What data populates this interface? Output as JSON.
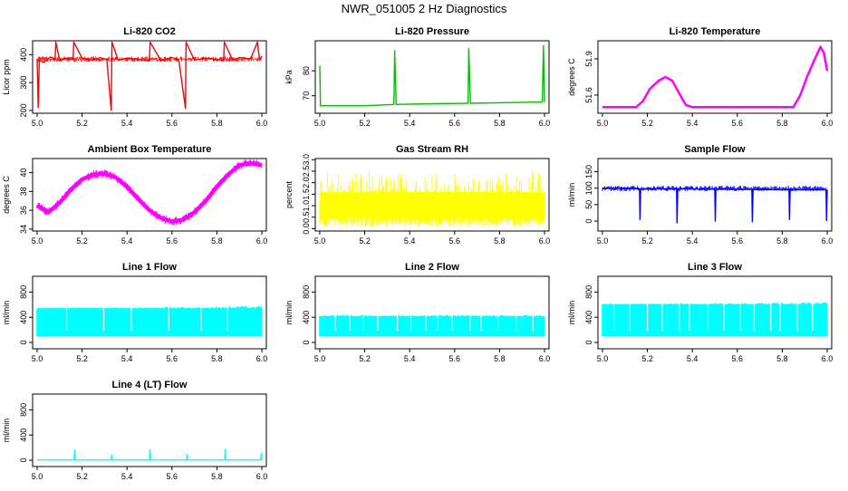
{
  "figure": {
    "title": "NWR_051005  2 Hz Diagnostics"
  },
  "chart_data": [
    {
      "type": "line",
      "title": "Li-820 CO2",
      "ylabel": "Licor ppm",
      "color": "#ff0000",
      "xlim": [
        4.98,
        6.02
      ],
      "ylim": [
        190,
        450
      ],
      "xticks": [
        5.0,
        5.2,
        5.4,
        5.6,
        5.8,
        6.0
      ],
      "xtick_labels": [
        "5.0",
        "5.2",
        "5.4",
        "5.6",
        "5.8",
        "6.0"
      ],
      "yticks": [
        200,
        300,
        400
      ],
      "ytick_labels": [
        "200",
        "300",
        "400"
      ],
      "series": [
        {
          "name": "CO2",
          "x": [
            5.0,
            5.005,
            5.01,
            5.03,
            5.06,
            5.08,
            5.083,
            5.1,
            5.13,
            5.16,
            5.163,
            5.2,
            5.25,
            5.28,
            5.31,
            5.33,
            5.333,
            5.36,
            5.4,
            5.45,
            5.5,
            5.503,
            5.55,
            5.6,
            5.63,
            5.66,
            5.663,
            5.7,
            5.75,
            5.8,
            5.83,
            5.833,
            5.87,
            5.9,
            5.95,
            5.98,
            5.99,
            6.0
          ],
          "values": [
            385,
            210,
            380,
            372,
            392,
            382,
            445,
            380,
            388,
            383,
            445,
            388,
            380,
            390,
            382,
            200,
            445,
            380,
            388,
            383,
            378,
            445,
            380,
            390,
            382,
            208,
            445,
            380,
            388,
            383,
            378,
            445,
            380,
            390,
            385,
            445,
            380,
            395
          ]
        }
      ]
    },
    {
      "type": "line",
      "title": "Li-820 Pressure",
      "ylabel": "kPa",
      "color": "#00c000",
      "xlim": [
        4.98,
        6.02
      ],
      "ylim": [
        63,
        92
      ],
      "xticks": [
        5.0,
        5.2,
        5.4,
        5.6,
        5.8,
        6.0
      ],
      "xtick_labels": [
        "5.0",
        "5.2",
        "5.4",
        "5.6",
        "5.8",
        "6.0"
      ],
      "yticks": [
        70,
        80
      ],
      "ytick_labels": [
        "70",
        "80"
      ],
      "series": [
        {
          "name": "Pressure",
          "x": [
            5.0,
            5.003,
            5.01,
            5.1,
            5.2,
            5.33,
            5.333,
            5.34,
            5.5,
            5.66,
            5.663,
            5.67,
            5.8,
            5.99,
            5.995,
            6.0
          ],
          "values": [
            82,
            66,
            66,
            66,
            66,
            66.5,
            88,
            66.5,
            66.8,
            67,
            89,
            67,
            67.2,
            67.5,
            90,
            67.5
          ]
        }
      ]
    },
    {
      "type": "line",
      "title": "Li-820 Temperature",
      "ylabel": "degrees C",
      "color": "#ff00ff",
      "xlim": [
        4.98,
        6.02
      ],
      "ylim": [
        51.45,
        52.05
      ],
      "xticks": [
        5.0,
        5.2,
        5.4,
        5.6,
        5.8,
        6.0
      ],
      "xtick_labels": [
        "5.0",
        "5.2",
        "5.4",
        "5.6",
        "5.8",
        "6.0"
      ],
      "yticks": [
        51.6,
        51.9
      ],
      "ytick_labels": [
        "51.6",
        "51.9"
      ],
      "series": [
        {
          "name": "Temperature",
          "x": [
            5.0,
            5.1,
            5.15,
            5.18,
            5.21,
            5.25,
            5.28,
            5.31,
            5.34,
            5.37,
            5.4,
            5.5,
            5.6,
            5.7,
            5.8,
            5.85,
            5.88,
            5.91,
            5.94,
            5.97,
            5.985,
            6.0
          ],
          "values": [
            51.5,
            51.5,
            51.5,
            51.55,
            51.65,
            51.72,
            51.75,
            51.72,
            51.62,
            51.52,
            51.5,
            51.5,
            51.5,
            51.5,
            51.5,
            51.5,
            51.6,
            51.75,
            51.88,
            52.0,
            51.95,
            51.8
          ]
        }
      ]
    },
    {
      "type": "line",
      "title": "Ambient Box Temperature",
      "ylabel": "degrees C",
      "color": "#ff00ff",
      "xlim": [
        4.98,
        6.02
      ],
      "ylim": [
        33.8,
        41.5
      ],
      "xticks": [
        5.0,
        5.2,
        5.4,
        5.6,
        5.8,
        6.0
      ],
      "xtick_labels": [
        "5.0",
        "5.2",
        "5.4",
        "5.6",
        "5.8",
        "6.0"
      ],
      "yticks": [
        34,
        36,
        38,
        40
      ],
      "ytick_labels": [
        "34",
        "36",
        "38",
        "40"
      ],
      "series": [
        {
          "name": "Ambient",
          "x": [
            5.0,
            5.05,
            5.1,
            5.15,
            5.2,
            5.25,
            5.3,
            5.35,
            5.4,
            5.45,
            5.5,
            5.55,
            5.6,
            5.65,
            5.7,
            5.75,
            5.8,
            5.85,
            5.9,
            5.95,
            6.0
          ],
          "values": [
            36.5,
            35.8,
            36.8,
            38.2,
            39.3,
            39.8,
            39.9,
            39.5,
            38.5,
            37.2,
            36.0,
            35.2,
            34.8,
            35.0,
            35.8,
            37.0,
            38.5,
            39.8,
            40.8,
            41.0,
            40.8
          ]
        }
      ]
    },
    {
      "type": "line",
      "title": "Gas Stream RH",
      "ylabel": "percent",
      "color": "#ffff00",
      "xlim": [
        4.98,
        6.02
      ],
      "ylim": [
        -0.1,
        3.05
      ],
      "xticks": [
        5.0,
        5.2,
        5.4,
        5.6,
        5.8,
        6.0
      ],
      "xtick_labels": [
        "5.0",
        "5.2",
        "5.4",
        "5.6",
        "5.8",
        "6.0"
      ],
      "yticks": [
        0.0,
        0.5,
        1.0,
        1.5,
        2.0,
        2.5,
        3.0
      ],
      "ytick_labels": [
        "0.0",
        "0.5",
        "1.0",
        "1.5",
        "2.0",
        "2.5",
        "3.0"
      ],
      "series": [
        {
          "name": "RH band",
          "x": [
            5.0,
            6.0
          ],
          "low": [
            0.1,
            0.1
          ],
          "high": [
            2.3,
            2.2
          ]
        }
      ]
    },
    {
      "type": "line",
      "title": "Sample Flow",
      "ylabel": "ml/min",
      "color": "#0000ff",
      "xlim": [
        4.98,
        6.02
      ],
      "ylim": [
        -30,
        190
      ],
      "xticks": [
        5.0,
        5.2,
        5.4,
        5.6,
        5.8,
        6.0
      ],
      "xtick_labels": [
        "5.0",
        "5.2",
        "5.4",
        "5.6",
        "5.8",
        "6.0"
      ],
      "yticks": [
        0,
        50,
        100,
        150
      ],
      "ytick_labels": [
        "0",
        "50",
        "100",
        "150"
      ],
      "series": [
        {
          "name": "Sample",
          "x": [
            5.0,
            5.1,
            5.165,
            5.167,
            5.17,
            5.33,
            5.332,
            5.335,
            5.5,
            5.502,
            5.505,
            5.665,
            5.667,
            5.67,
            5.83,
            5.832,
            5.835,
            5.995,
            5.997,
            6.0
          ],
          "values": [
            100,
            100,
            98,
            5,
            98,
            98,
            -5,
            98,
            97,
            0,
            97,
            96,
            -2,
            96,
            95,
            5,
            95,
            95,
            2,
            95
          ]
        }
      ]
    },
    {
      "type": "bar",
      "title": "Line 1 Flow",
      "ylabel": "ml/min",
      "color": "#00ffff",
      "xlim": [
        4.98,
        6.02
      ],
      "ylim": [
        -100,
        1050
      ],
      "xticks": [
        5.0,
        5.2,
        5.4,
        5.6,
        5.8,
        6.0
      ],
      "xtick_labels": [
        "5.0",
        "5.2",
        "5.4",
        "5.6",
        "5.8",
        "6.0"
      ],
      "yticks": [
        0,
        400,
        800
      ],
      "ytick_labels": [
        "0",
        "400",
        "800"
      ],
      "series": [
        {
          "name": "Line 1",
          "x": [
            5.0,
            6.0
          ],
          "low": [
            100,
            100
          ],
          "high": [
            530,
            560
          ]
        }
      ]
    },
    {
      "type": "bar",
      "title": "Line 2 Flow",
      "ylabel": "ml/min",
      "color": "#00ffff",
      "xlim": [
        4.98,
        6.02
      ],
      "ylim": [
        -100,
        1050
      ],
      "xticks": [
        5.0,
        5.2,
        5.4,
        5.6,
        5.8,
        6.0
      ],
      "xtick_labels": [
        "5.0",
        "5.2",
        "5.4",
        "5.6",
        "5.8",
        "6.0"
      ],
      "yticks": [
        0,
        400,
        800
      ],
      "ytick_labels": [
        "0",
        "400",
        "800"
      ],
      "series": [
        {
          "name": "Line 2",
          "x": [
            5.0,
            6.0
          ],
          "low": [
            100,
            100
          ],
          "high": [
            420,
            420
          ]
        }
      ]
    },
    {
      "type": "bar",
      "title": "Line 3 Flow",
      "ylabel": "ml/min",
      "color": "#00ffff",
      "xlim": [
        4.98,
        6.02
      ],
      "ylim": [
        -100,
        1050
      ],
      "xticks": [
        5.0,
        5.2,
        5.4,
        5.6,
        5.8,
        6.0
      ],
      "xtick_labels": [
        "5.0",
        "5.2",
        "5.4",
        "5.6",
        "5.8",
        "6.0"
      ],
      "yticks": [
        0,
        400,
        800
      ],
      "ytick_labels": [
        "0",
        "400",
        "800"
      ],
      "series": [
        {
          "name": "Line 3",
          "x": [
            5.0,
            6.0
          ],
          "low": [
            100,
            100
          ],
          "high": [
            600,
            620
          ]
        }
      ]
    },
    {
      "type": "line",
      "title": "Line 4 (LT) Flow",
      "ylabel": "ml/min",
      "color": "#00ffff",
      "xlim": [
        4.98,
        6.02
      ],
      "ylim": [
        -100,
        1050
      ],
      "xticks": [
        5.0,
        5.2,
        5.4,
        5.6,
        5.8,
        6.0
      ],
      "xtick_labels": [
        "5.0",
        "5.2",
        "5.4",
        "5.6",
        "5.8",
        "6.0"
      ],
      "yticks": [
        0,
        400,
        800
      ],
      "ytick_labels": [
        "0",
        "400",
        "800"
      ],
      "series": [
        {
          "name": "Line 4",
          "x": [
            5.0,
            5.165,
            5.167,
            5.17,
            5.33,
            5.332,
            5.335,
            5.5,
            5.502,
            5.505,
            5.665,
            5.667,
            5.67,
            5.835,
            5.837,
            5.84,
            5.995,
            5.997,
            6.0
          ],
          "values": [
            5,
            5,
            160,
            5,
            5,
            80,
            5,
            5,
            170,
            5,
            5,
            90,
            5,
            5,
            170,
            5,
            5,
            110,
            5
          ]
        }
      ]
    }
  ]
}
